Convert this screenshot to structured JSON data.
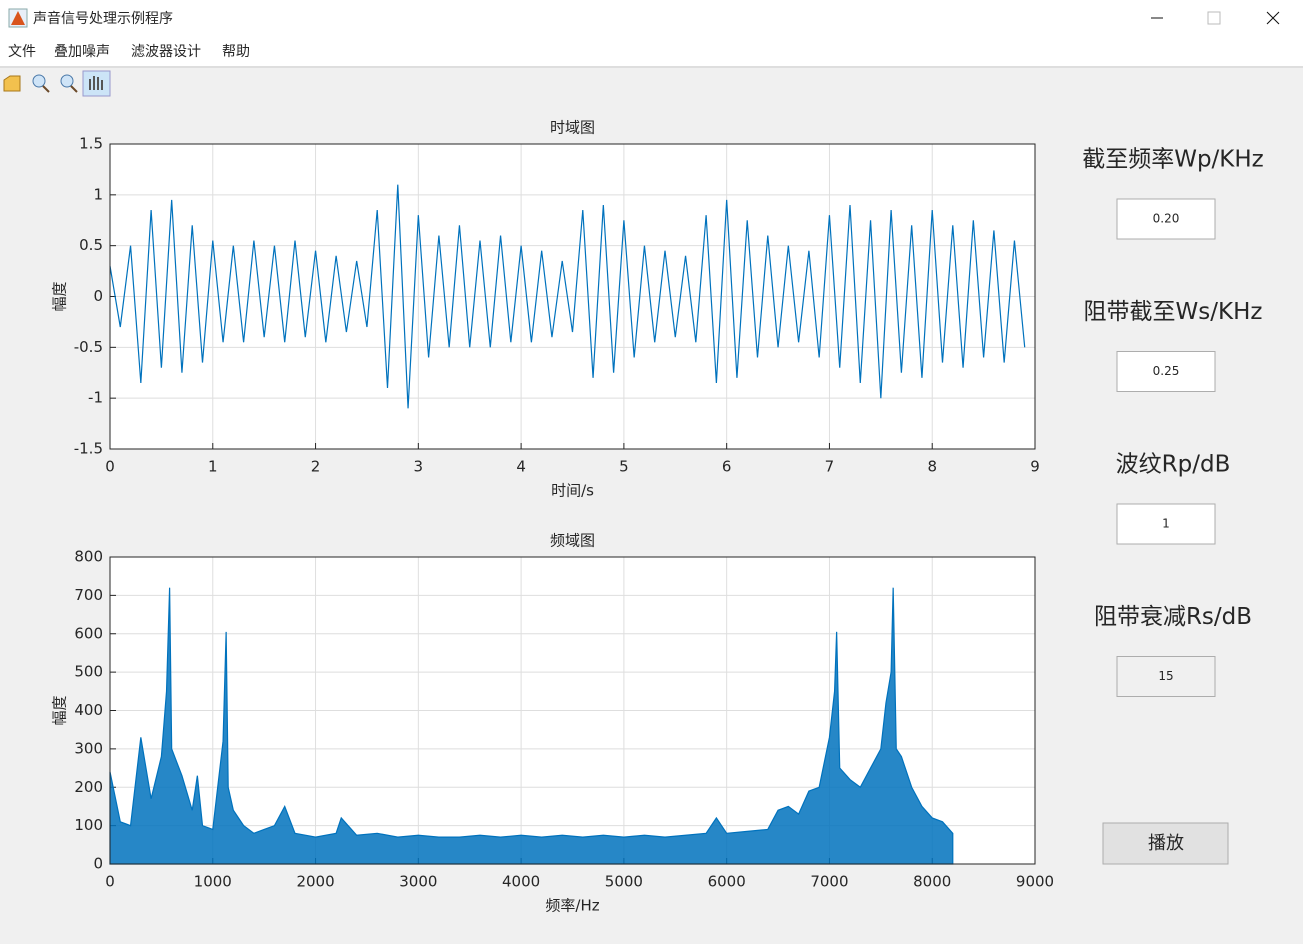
{
  "window": {
    "title": "声音信号处理示例程序"
  },
  "menu": [
    "文件",
    "叠加噪声",
    "滤波器设计",
    "帮助"
  ],
  "chart_data": [
    {
      "type": "line",
      "title": "时域图",
      "x_label": "时间/s",
      "y_label": "幅度",
      "x": [
        0,
        0.1,
        0.2,
        0.3,
        0.4,
        0.5,
        0.6,
        0.7,
        0.8,
        0.9,
        1.0,
        1.1,
        1.2,
        1.3,
        1.4,
        1.5,
        1.6,
        1.7,
        1.8,
        1.9,
        2.0,
        2.1,
        2.2,
        2.3,
        2.4,
        2.5,
        2.6,
        2.7,
        2.8,
        2.9,
        3.0,
        3.1,
        3.2,
        3.3,
        3.4,
        3.5,
        3.6,
        3.7,
        3.8,
        3.9,
        4.0,
        4.1,
        4.2,
        4.3,
        4.4,
        4.5,
        4.6,
        4.7,
        4.8,
        4.9,
        5.0,
        5.1,
        5.2,
        5.3,
        5.4,
        5.5,
        5.6,
        5.7,
        5.8,
        5.9,
        6.0,
        6.1,
        6.2,
        6.3,
        6.4,
        6.5,
        6.6,
        6.7,
        6.8,
        6.9,
        7.0,
        7.1,
        7.2,
        7.3,
        7.4,
        7.5,
        7.6,
        7.7,
        7.8,
        7.9,
        8.0,
        8.1,
        8.2,
        8.3,
        8.4,
        8.5,
        8.6,
        8.7,
        8.8,
        8.9
      ],
      "series": [
        {
          "color": "#0072bd",
          "values": [
            0.3,
            -0.3,
            0.5,
            -0.85,
            0.85,
            -0.7,
            0.95,
            -0.75,
            0.7,
            -0.65,
            0.55,
            -0.45,
            0.5,
            -0.45,
            0.55,
            -0.4,
            0.5,
            -0.45,
            0.55,
            -0.4,
            0.45,
            -0.45,
            0.4,
            -0.35,
            0.35,
            -0.3,
            0.85,
            -0.9,
            1.1,
            -1.1,
            0.8,
            -0.6,
            0.6,
            -0.5,
            0.7,
            -0.5,
            0.55,
            -0.5,
            0.6,
            -0.45,
            0.5,
            -0.45,
            0.45,
            -0.4,
            0.35,
            -0.35,
            0.85,
            -0.8,
            0.9,
            -0.75,
            0.75,
            -0.6,
            0.5,
            -0.45,
            0.45,
            -0.4,
            0.4,
            -0.45,
            0.8,
            -0.85,
            0.95,
            -0.8,
            0.75,
            -0.6,
            0.6,
            -0.5,
            0.5,
            -0.45,
            0.45,
            -0.6,
            0.8,
            -0.7,
            0.9,
            -0.85,
            0.75,
            -1.0,
            0.85,
            -0.75,
            0.7,
            -0.8,
            0.85,
            -0.65,
            0.7,
            -0.7,
            0.75,
            -0.6,
            0.65,
            -0.65,
            0.55,
            -0.5
          ]
        }
      ],
      "xlim": [
        0,
        9
      ],
      "xticks": [
        0,
        1,
        2,
        3,
        4,
        5,
        6,
        7,
        8,
        9
      ],
      "ylim": [
        -1.5,
        1.5
      ],
      "yticks": [
        -1.5,
        -1,
        -0.5,
        0,
        0.5,
        1,
        1.5
      ],
      "grid": true
    },
    {
      "type": "area",
      "title": "频域图",
      "x_label": "频率/Hz",
      "y_label": "幅度",
      "x": [
        0,
        100,
        200,
        300,
        400,
        500,
        550,
        580,
        600,
        700,
        800,
        850,
        900,
        1000,
        1100,
        1130,
        1150,
        1200,
        1300,
        1400,
        1500,
        1600,
        1700,
        1800,
        1900,
        2000,
        2200,
        2250,
        2400,
        2600,
        2800,
        3000,
        3200,
        3400,
        3600,
        3800,
        4000,
        4200,
        4400,
        4600,
        4800,
        5000,
        5200,
        5400,
        5600,
        5800,
        5900,
        6000,
        6200,
        6400,
        6500,
        6600,
        6700,
        6800,
        6900,
        7000,
        7050,
        7070,
        7100,
        7200,
        7300,
        7400,
        7500,
        7550,
        7600,
        7620,
        7650,
        7700,
        7800,
        7900,
        8000,
        8100,
        8200
      ],
      "series": [
        {
          "color": "#0072bd",
          "values": [
            240,
            110,
            100,
            330,
            170,
            280,
            450,
            720,
            300,
            230,
            140,
            230,
            100,
            90,
            320,
            605,
            200,
            140,
            100,
            80,
            90,
            100,
            150,
            80,
            75,
            70,
            80,
            120,
            75,
            80,
            70,
            75,
            70,
            70,
            75,
            70,
            75,
            70,
            75,
            70,
            75,
            70,
            75,
            70,
            75,
            80,
            120,
            80,
            85,
            90,
            140,
            150,
            130,
            190,
            200,
            330,
            450,
            605,
            250,
            220,
            200,
            250,
            300,
            420,
            500,
            720,
            300,
            280,
            200,
            150,
            120,
            110,
            80
          ]
        }
      ],
      "xlim": [
        0,
        9000
      ],
      "xticks": [
        0,
        1000,
        2000,
        3000,
        4000,
        5000,
        6000,
        7000,
        8000,
        9000
      ],
      "ylim": [
        0,
        800
      ],
      "yticks": [
        0,
        100,
        200,
        300,
        400,
        500,
        600,
        700,
        800
      ],
      "grid": true
    }
  ],
  "controls": [
    {
      "label": "截至频率Wp/KHz",
      "value": "0.20",
      "enabled": true
    },
    {
      "label": "阻带截至Ws/KHz",
      "value": "0.25",
      "enabled": true
    },
    {
      "label": "波纹Rp/dB",
      "value": "1",
      "enabled": true
    },
    {
      "label": "阻带衰减Rs/dB",
      "value": "15",
      "enabled": false
    }
  ],
  "button": "播放"
}
